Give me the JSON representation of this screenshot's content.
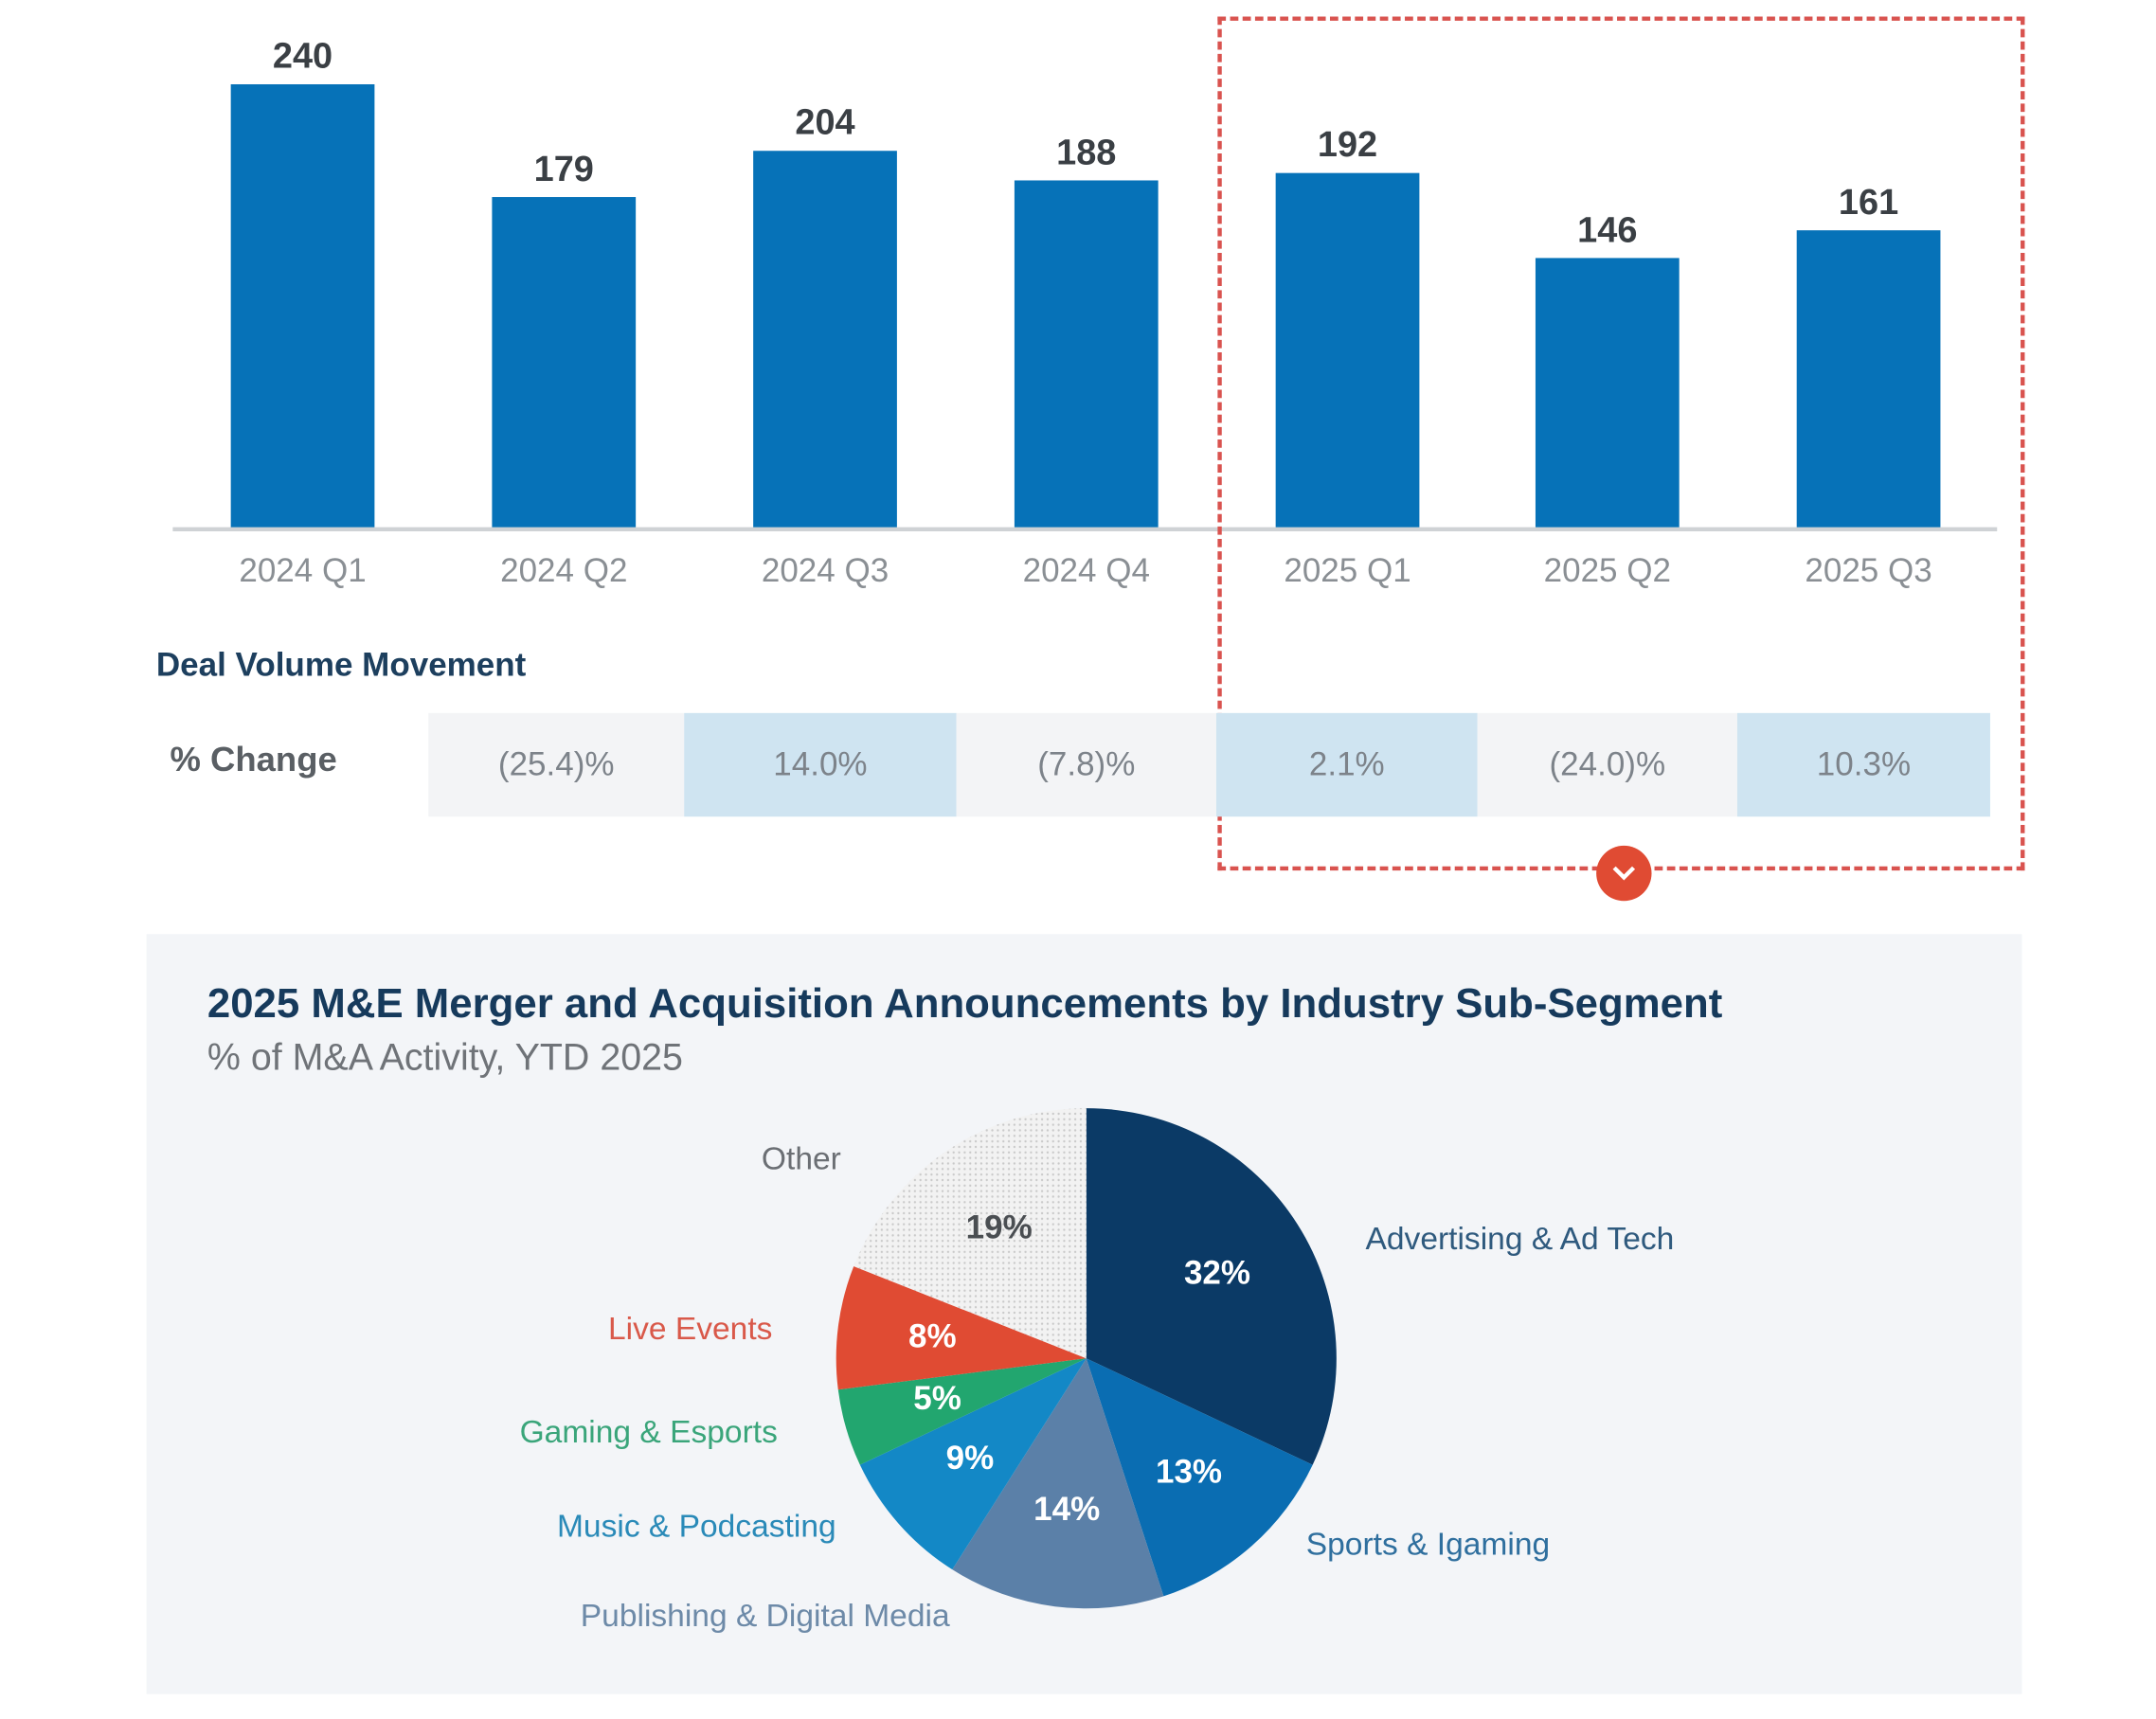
{
  "chart_data": [
    {
      "type": "bar",
      "categories": [
        "2024 Q1",
        "2024 Q2",
        "2024 Q3",
        "2024 Q4",
        "2025 Q1",
        "2025 Q2",
        "2025 Q3"
      ],
      "values": [
        240,
        179,
        204,
        188,
        192,
        146,
        161
      ],
      "value_labels": [
        "240",
        "179",
        "204",
        "188",
        "192",
        "146",
        "161"
      ],
      "ylim": [
        0,
        240
      ],
      "grid": false,
      "color": "#0672b8",
      "highlight_categories": [
        "2025 Q1",
        "2025 Q2",
        "2025 Q3"
      ],
      "highlight_color": "#d9534f"
    },
    {
      "type": "table",
      "title": "Deal Volume Movement",
      "row_label": "% Change",
      "values": [
        "(25.4)%",
        "14.0%",
        "(7.8)%",
        "2.1%",
        "(24.0)%",
        "10.3%"
      ],
      "colors": [
        "#f3f4f6",
        "#cfe4f1"
      ]
    },
    {
      "type": "pie",
      "title": "2025 M&E Merger and Acquisition Announcements by Industry Sub-Segment",
      "subtitle": "% of M&A Activity, YTD 2025",
      "slices": [
        {
          "name": "Advertising & Ad Tech",
          "value": 32,
          "label": "32%",
          "color": "#0b3a66",
          "label_color": "#2f5a7e"
        },
        {
          "name": "Sports & Igaming",
          "value": 13,
          "label": "13%",
          "color": "#0a6db2",
          "label_color": "#2f6f9e"
        },
        {
          "name": "Publishing & Digital Media",
          "value": 14,
          "label": "14%",
          "color": "#5b80a8",
          "label_color": "#6d8aa8"
        },
        {
          "name": "Music & Podcasting",
          "value": 9,
          "label": "9%",
          "color": "#1388c6",
          "label_color": "#2a8ab8"
        },
        {
          "name": "Gaming & Esports",
          "value": 5,
          "label": "5%",
          "color": "#22a66f",
          "label_color": "#3aa57a"
        },
        {
          "name": "Live Events",
          "value": 8,
          "label": "8%",
          "color": "#e04b33",
          "label_color": "#d9594a"
        },
        {
          "name": "Other",
          "value": 19,
          "label": "19%",
          "color": "#ededed",
          "label_color": "#6b6f74"
        }
      ]
    }
  ]
}
